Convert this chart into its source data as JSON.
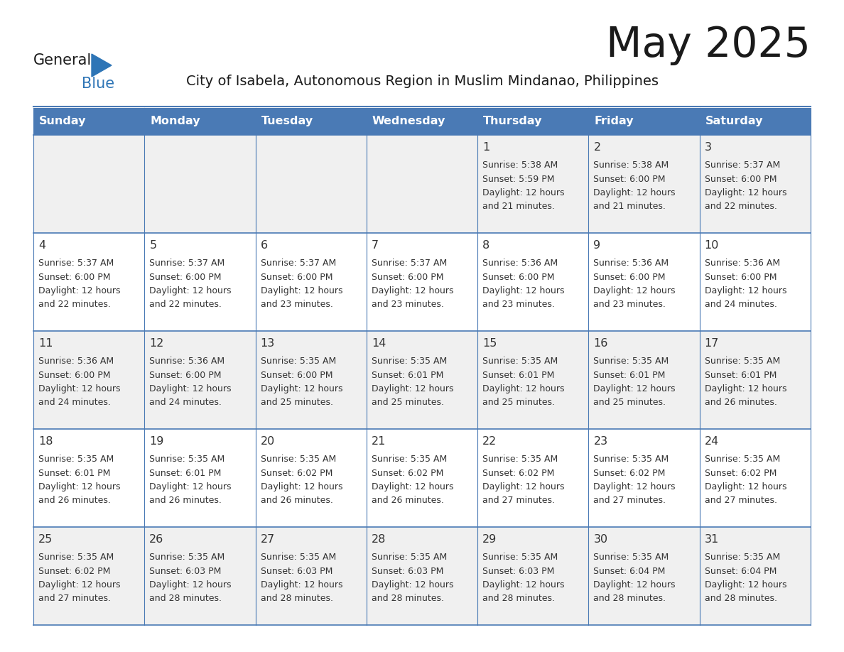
{
  "title": "May 2025",
  "subtitle": "City of Isabela, Autonomous Region in Muslim Mindanao, Philippines",
  "days_of_week": [
    "Sunday",
    "Monday",
    "Tuesday",
    "Wednesday",
    "Thursday",
    "Friday",
    "Saturday"
  ],
  "header_bg": "#4a7ab5",
  "header_text_color": "#FFFFFF",
  "cell_bg_even": "#f0f0f0",
  "cell_bg_odd": "#FFFFFF",
  "border_color": "#4a7ab5",
  "text_color": "#333333",
  "logo_general_color": "#1a1a1a",
  "logo_blue_color": "#2E75B6",
  "title_color": "#1a1a1a",
  "subtitle_color": "#1a1a1a",
  "calendar_data": [
    [
      null,
      null,
      null,
      null,
      {
        "day": 1,
        "sunrise": "5:38 AM",
        "sunset": "5:59 PM",
        "daylight_line1": "Daylight: 12 hours",
        "daylight_line2": "and 21 minutes."
      },
      {
        "day": 2,
        "sunrise": "5:38 AM",
        "sunset": "6:00 PM",
        "daylight_line1": "Daylight: 12 hours",
        "daylight_line2": "and 21 minutes."
      },
      {
        "day": 3,
        "sunrise": "5:37 AM",
        "sunset": "6:00 PM",
        "daylight_line1": "Daylight: 12 hours",
        "daylight_line2": "and 22 minutes."
      }
    ],
    [
      {
        "day": 4,
        "sunrise": "5:37 AM",
        "sunset": "6:00 PM",
        "daylight_line1": "Daylight: 12 hours",
        "daylight_line2": "and 22 minutes."
      },
      {
        "day": 5,
        "sunrise": "5:37 AM",
        "sunset": "6:00 PM",
        "daylight_line1": "Daylight: 12 hours",
        "daylight_line2": "and 22 minutes."
      },
      {
        "day": 6,
        "sunrise": "5:37 AM",
        "sunset": "6:00 PM",
        "daylight_line1": "Daylight: 12 hours",
        "daylight_line2": "and 23 minutes."
      },
      {
        "day": 7,
        "sunrise": "5:37 AM",
        "sunset": "6:00 PM",
        "daylight_line1": "Daylight: 12 hours",
        "daylight_line2": "and 23 minutes."
      },
      {
        "day": 8,
        "sunrise": "5:36 AM",
        "sunset": "6:00 PM",
        "daylight_line1": "Daylight: 12 hours",
        "daylight_line2": "and 23 minutes."
      },
      {
        "day": 9,
        "sunrise": "5:36 AM",
        "sunset": "6:00 PM",
        "daylight_line1": "Daylight: 12 hours",
        "daylight_line2": "and 23 minutes."
      },
      {
        "day": 10,
        "sunrise": "5:36 AM",
        "sunset": "6:00 PM",
        "daylight_line1": "Daylight: 12 hours",
        "daylight_line2": "and 24 minutes."
      }
    ],
    [
      {
        "day": 11,
        "sunrise": "5:36 AM",
        "sunset": "6:00 PM",
        "daylight_line1": "Daylight: 12 hours",
        "daylight_line2": "and 24 minutes."
      },
      {
        "day": 12,
        "sunrise": "5:36 AM",
        "sunset": "6:00 PM",
        "daylight_line1": "Daylight: 12 hours",
        "daylight_line2": "and 24 minutes."
      },
      {
        "day": 13,
        "sunrise": "5:35 AM",
        "sunset": "6:00 PM",
        "daylight_line1": "Daylight: 12 hours",
        "daylight_line2": "and 25 minutes."
      },
      {
        "day": 14,
        "sunrise": "5:35 AM",
        "sunset": "6:01 PM",
        "daylight_line1": "Daylight: 12 hours",
        "daylight_line2": "and 25 minutes."
      },
      {
        "day": 15,
        "sunrise": "5:35 AM",
        "sunset": "6:01 PM",
        "daylight_line1": "Daylight: 12 hours",
        "daylight_line2": "and 25 minutes."
      },
      {
        "day": 16,
        "sunrise": "5:35 AM",
        "sunset": "6:01 PM",
        "daylight_line1": "Daylight: 12 hours",
        "daylight_line2": "and 25 minutes."
      },
      {
        "day": 17,
        "sunrise": "5:35 AM",
        "sunset": "6:01 PM",
        "daylight_line1": "Daylight: 12 hours",
        "daylight_line2": "and 26 minutes."
      }
    ],
    [
      {
        "day": 18,
        "sunrise": "5:35 AM",
        "sunset": "6:01 PM",
        "daylight_line1": "Daylight: 12 hours",
        "daylight_line2": "and 26 minutes."
      },
      {
        "day": 19,
        "sunrise": "5:35 AM",
        "sunset": "6:01 PM",
        "daylight_line1": "Daylight: 12 hours",
        "daylight_line2": "and 26 minutes."
      },
      {
        "day": 20,
        "sunrise": "5:35 AM",
        "sunset": "6:02 PM",
        "daylight_line1": "Daylight: 12 hours",
        "daylight_line2": "and 26 minutes."
      },
      {
        "day": 21,
        "sunrise": "5:35 AM",
        "sunset": "6:02 PM",
        "daylight_line1": "Daylight: 12 hours",
        "daylight_line2": "and 26 minutes."
      },
      {
        "day": 22,
        "sunrise": "5:35 AM",
        "sunset": "6:02 PM",
        "daylight_line1": "Daylight: 12 hours",
        "daylight_line2": "and 27 minutes."
      },
      {
        "day": 23,
        "sunrise": "5:35 AM",
        "sunset": "6:02 PM",
        "daylight_line1": "Daylight: 12 hours",
        "daylight_line2": "and 27 minutes."
      },
      {
        "day": 24,
        "sunrise": "5:35 AM",
        "sunset": "6:02 PM",
        "daylight_line1": "Daylight: 12 hours",
        "daylight_line2": "and 27 minutes."
      }
    ],
    [
      {
        "day": 25,
        "sunrise": "5:35 AM",
        "sunset": "6:02 PM",
        "daylight_line1": "Daylight: 12 hours",
        "daylight_line2": "and 27 minutes."
      },
      {
        "day": 26,
        "sunrise": "5:35 AM",
        "sunset": "6:03 PM",
        "daylight_line1": "Daylight: 12 hours",
        "daylight_line2": "and 28 minutes."
      },
      {
        "day": 27,
        "sunrise": "5:35 AM",
        "sunset": "6:03 PM",
        "daylight_line1": "Daylight: 12 hours",
        "daylight_line2": "and 28 minutes."
      },
      {
        "day": 28,
        "sunrise": "5:35 AM",
        "sunset": "6:03 PM",
        "daylight_line1": "Daylight: 12 hours",
        "daylight_line2": "and 28 minutes."
      },
      {
        "day": 29,
        "sunrise": "5:35 AM",
        "sunset": "6:03 PM",
        "daylight_line1": "Daylight: 12 hours",
        "daylight_line2": "and 28 minutes."
      },
      {
        "day": 30,
        "sunrise": "5:35 AM",
        "sunset": "6:04 PM",
        "daylight_line1": "Daylight: 12 hours",
        "daylight_line2": "and 28 minutes."
      },
      {
        "day": 31,
        "sunrise": "5:35 AM",
        "sunset": "6:04 PM",
        "daylight_line1": "Daylight: 12 hours",
        "daylight_line2": "and 28 minutes."
      }
    ]
  ]
}
